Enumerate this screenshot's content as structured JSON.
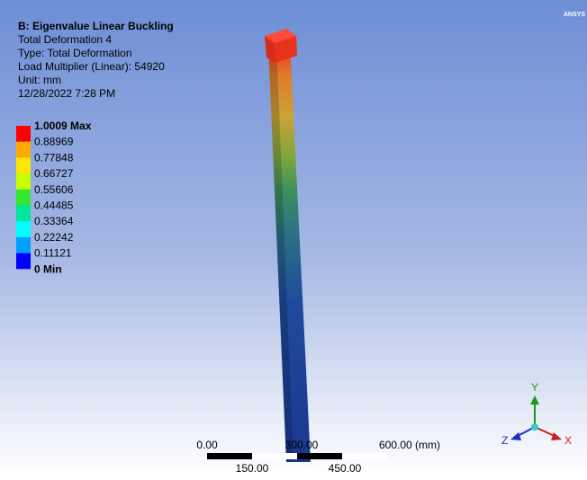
{
  "header": {
    "lines": [
      "B: Eigenvalue Linear Buckling",
      "Total Deformation 4",
      "Type: Total Deformation",
      "Load Multiplier (Linear): 54920",
      "Unit: mm",
      "12/28/2022 7:28 PM"
    ]
  },
  "legend": {
    "labels": [
      "1.0009 Max",
      "0.88969",
      "0.77848",
      "0.66727",
      "0.55606",
      "0.44485",
      "0.33364",
      "0.22242",
      "0.11121",
      "0 Min"
    ],
    "colors": [
      "#ff0000",
      "#ffaa00",
      "#ffe600",
      "#c8ff00",
      "#32e632",
      "#00e69b",
      "#00ffff",
      "#00a0ff",
      "#0000ff"
    ]
  },
  "scale_bar": {
    "top_labels": [
      "0.00",
      "300.00",
      "600.00 (mm)"
    ],
    "bottom_labels": [
      "150.00",
      "450.00"
    ]
  },
  "triad": {
    "x": "X",
    "y": "Y",
    "z": "Z"
  },
  "logo": "ANSYS"
}
